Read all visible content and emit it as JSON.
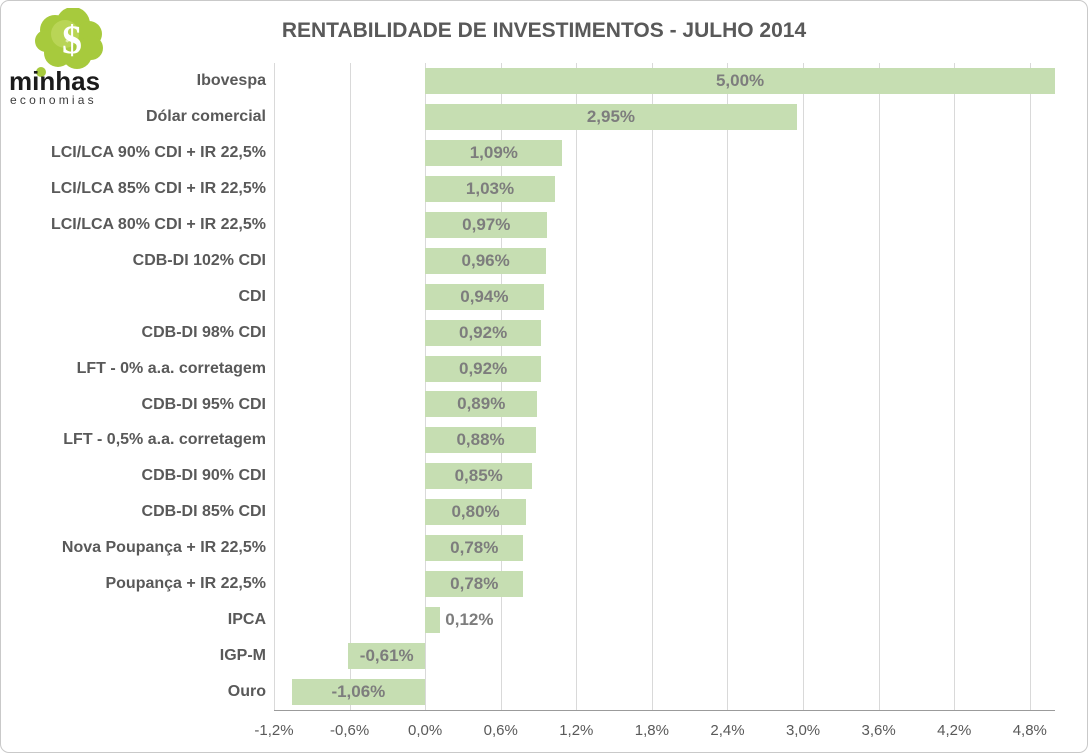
{
  "logo": {
    "brand_top": "minhas",
    "brand_bottom": "economias",
    "icon": "dollar-cloud-icon",
    "cloud_color": "#a7ca3d",
    "cloud_highlight": "#c8de6b",
    "dollar_color": "#ffffff"
  },
  "header": {
    "title": "RENTABILIDADE DE INVESTIMENTOS - JULHO 2014"
  },
  "chart_data": {
    "type": "bar",
    "orientation": "horizontal",
    "title": "RENTABILIDADE DE INVESTIMENTOS - JULHO 2014",
    "categories": [
      "Ibovespa",
      "Dólar comercial",
      "LCI/LCA 90% CDI + IR 22,5%",
      "LCI/LCA 85% CDI + IR 22,5%",
      "LCI/LCA 80% CDI + IR 22,5%",
      "CDB-DI 102% CDI",
      "CDI",
      "CDB-DI 98% CDI",
      "LFT - 0% a.a. corretagem",
      "CDB-DI 95% CDI",
      "LFT - 0,5% a.a. corretagem",
      "CDB-DI 90% CDI",
      "CDB-DI 85% CDI",
      "Nova Poupança + IR 22,5%",
      "Poupança + IR 22,5%",
      "IPCA",
      "IGP-M",
      "Ouro"
    ],
    "values": [
      5.0,
      2.95,
      1.09,
      1.03,
      0.97,
      0.96,
      0.94,
      0.92,
      0.92,
      0.89,
      0.88,
      0.85,
      0.8,
      0.78,
      0.78,
      0.12,
      -0.61,
      -1.06
    ],
    "value_labels": [
      "5,00%",
      "2,95%",
      "1,09%",
      "1,03%",
      "0,97%",
      "0,96%",
      "0,94%",
      "0,92%",
      "0,92%",
      "0,89%",
      "0,88%",
      "0,85%",
      "0,80%",
      "0,78%",
      "0,78%",
      "0,12%",
      "-0,61%",
      "-1,06%"
    ],
    "xlabel": "",
    "ylabel": "",
    "xlim": [
      -1.2,
      5.0
    ],
    "x_ticks": [
      -1.2,
      -0.6,
      0.0,
      0.6,
      1.2,
      1.8,
      2.4,
      3.0,
      3.6,
      4.2,
      4.8
    ],
    "x_tick_labels": [
      "-1,2%",
      "-0,6%",
      "0,0%",
      "0,6%",
      "1,2%",
      "1,8%",
      "2,4%",
      "3,0%",
      "3,6%",
      "4,2%",
      "4,8%"
    ],
    "grid": "vertical",
    "legend": "none",
    "bar_color": "#c6deb2",
    "value_label_color": "#7d7d7d",
    "category_label_color": "#595959",
    "gridline_color": "#d9d9d9"
  }
}
